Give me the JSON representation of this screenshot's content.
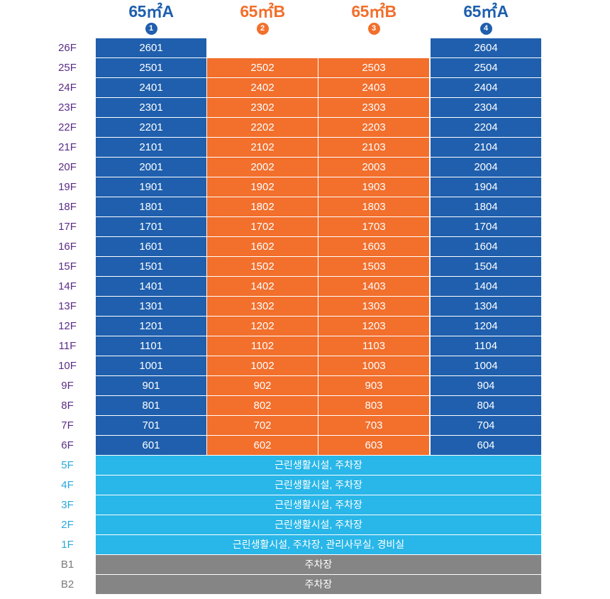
{
  "colors": {
    "type_a": "#1f5fad",
    "type_b": "#f26f2c",
    "facility": "#29b6e8",
    "parking": "#858585",
    "floor_residential": "#5b2d86",
    "floor_facility": "#29a8dd",
    "floor_basement": "#7a7a7a",
    "badge_a": "#1f5fad",
    "badge_b": "#f26f2c"
  },
  "columns": [
    {
      "title": "65㎡A",
      "badge": "1",
      "type": "a"
    },
    {
      "title": "65㎡B",
      "badge": "2",
      "type": "b"
    },
    {
      "title": "65㎡B",
      "badge": "3",
      "type": "b"
    },
    {
      "title": "65㎡A",
      "badge": "4",
      "type": "a"
    }
  ],
  "unit_floors": [
    {
      "floor": "26F",
      "units": [
        "2601",
        "",
        "",
        "2604"
      ]
    },
    {
      "floor": "25F",
      "units": [
        "2501",
        "2502",
        "2503",
        "2504"
      ]
    },
    {
      "floor": "24F",
      "units": [
        "2401",
        "2402",
        "2403",
        "2404"
      ]
    },
    {
      "floor": "23F",
      "units": [
        "2301",
        "2302",
        "2303",
        "2304"
      ]
    },
    {
      "floor": "22F",
      "units": [
        "2201",
        "2202",
        "2203",
        "2204"
      ]
    },
    {
      "floor": "21F",
      "units": [
        "2101",
        "2102",
        "2103",
        "2104"
      ]
    },
    {
      "floor": "20F",
      "units": [
        "2001",
        "2002",
        "2003",
        "2004"
      ]
    },
    {
      "floor": "19F",
      "units": [
        "1901",
        "1902",
        "1903",
        "1904"
      ]
    },
    {
      "floor": "18F",
      "units": [
        "1801",
        "1802",
        "1803",
        "1804"
      ]
    },
    {
      "floor": "17F",
      "units": [
        "1701",
        "1702",
        "1703",
        "1704"
      ]
    },
    {
      "floor": "16F",
      "units": [
        "1601",
        "1602",
        "1603",
        "1604"
      ]
    },
    {
      "floor": "15F",
      "units": [
        "1501",
        "1502",
        "1503",
        "1504"
      ]
    },
    {
      "floor": "14F",
      "units": [
        "1401",
        "1402",
        "1403",
        "1404"
      ]
    },
    {
      "floor": "13F",
      "units": [
        "1301",
        "1302",
        "1303",
        "1304"
      ]
    },
    {
      "floor": "12F",
      "units": [
        "1201",
        "1202",
        "1203",
        "1204"
      ]
    },
    {
      "floor": "11F",
      "units": [
        "1101",
        "1102",
        "1103",
        "1104"
      ]
    },
    {
      "floor": "10F",
      "units": [
        "1001",
        "1002",
        "1003",
        "1004"
      ]
    },
    {
      "floor": "9F",
      "units": [
        "901",
        "902",
        "903",
        "904"
      ]
    },
    {
      "floor": "8F",
      "units": [
        "801",
        "802",
        "803",
        "804"
      ]
    },
    {
      "floor": "7F",
      "units": [
        "701",
        "702",
        "703",
        "704"
      ]
    },
    {
      "floor": "6F",
      "units": [
        "601",
        "602",
        "603",
        "604"
      ]
    }
  ],
  "facility_floors": [
    {
      "floor": "5F",
      "label": "근린생활시설, 주차장",
      "kind": "facility"
    },
    {
      "floor": "4F",
      "label": "근린생활시설, 주차장",
      "kind": "facility"
    },
    {
      "floor": "3F",
      "label": "근린생활시설, 주차장",
      "kind": "facility"
    },
    {
      "floor": "2F",
      "label": "근린생활시설, 주차장",
      "kind": "facility"
    },
    {
      "floor": "1F",
      "label": "근린생활시설, 주차장, 관리사무실, 경비실",
      "kind": "facility"
    },
    {
      "floor": "B1",
      "label": "주차장",
      "kind": "parking"
    },
    {
      "floor": "B2",
      "label": "주차장",
      "kind": "parking"
    }
  ]
}
